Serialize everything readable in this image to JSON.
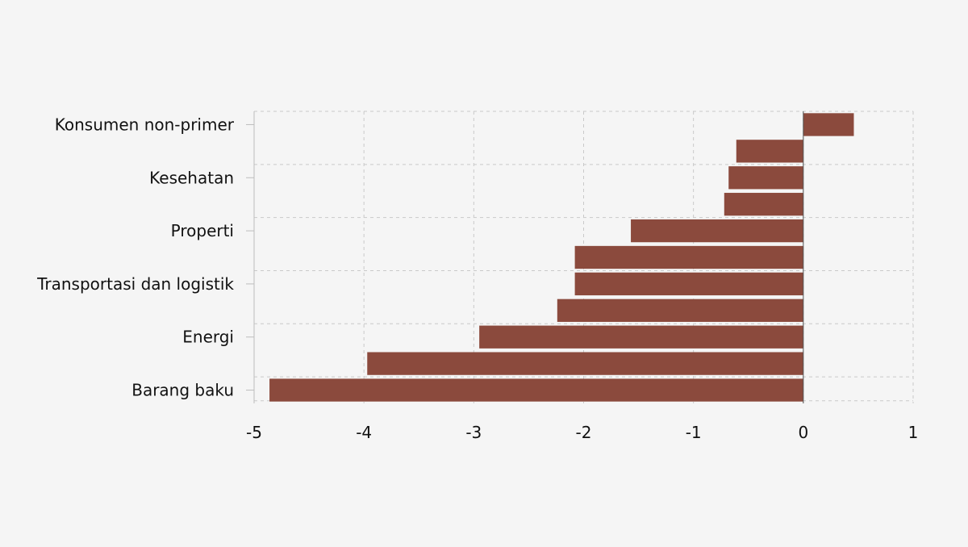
{
  "chart_data": {
    "type": "bar",
    "orientation": "horizontal",
    "categories": [
      "Konsumen non-primer",
      "",
      "Kesehatan",
      "",
      "Properti",
      "",
      "Transportasi dan logistik",
      "",
      "Energi",
      "",
      "Barang baku"
    ],
    "values": [
      0.46,
      -0.61,
      -0.68,
      -0.72,
      -1.57,
      -2.08,
      -2.08,
      -2.24,
      -2.95,
      -3.97,
      -4.86
    ],
    "xlim": [
      -5,
      1
    ],
    "xticks": [
      -5,
      -4,
      -3,
      -2,
      -1,
      0,
      1
    ],
    "xtick_labels": [
      "-5",
      "-4",
      "-3",
      "-2",
      "-1",
      "0",
      "1"
    ],
    "bar_color": "#8b4a3d",
    "grid": true,
    "title": "",
    "xlabel": "",
    "ylabel": ""
  }
}
